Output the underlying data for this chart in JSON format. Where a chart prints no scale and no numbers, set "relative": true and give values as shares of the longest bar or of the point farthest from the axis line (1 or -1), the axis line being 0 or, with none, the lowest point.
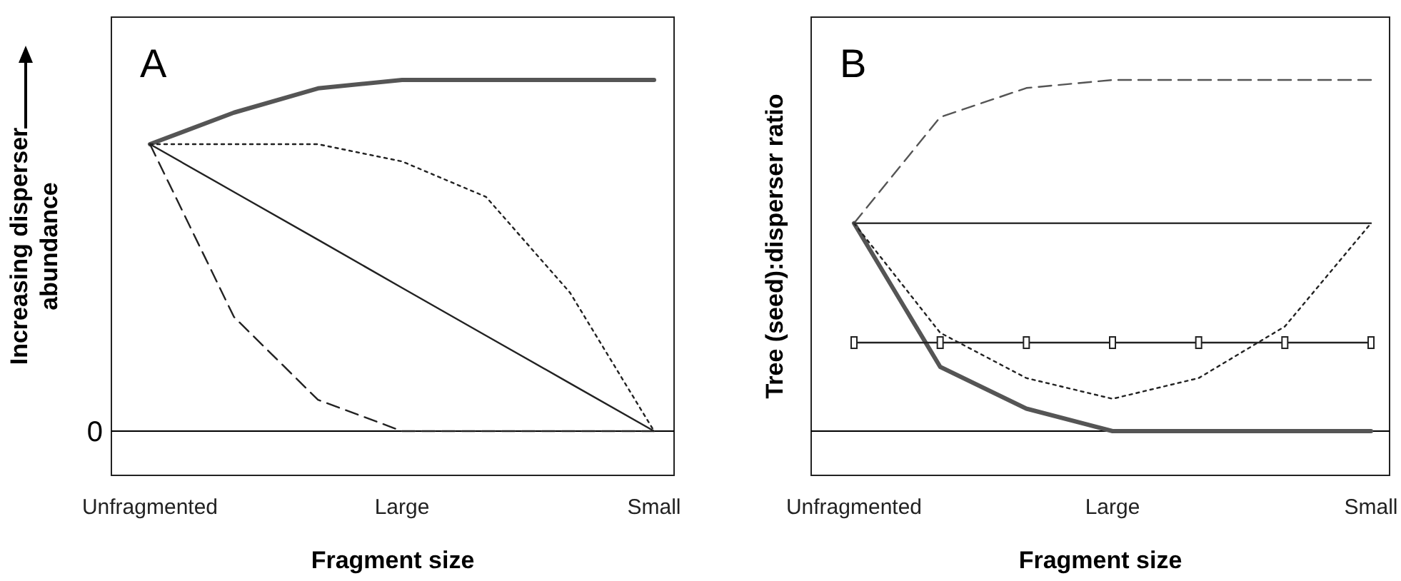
{
  "chart_data": [
    {
      "type": "line",
      "title": "A",
      "xlabel": "Fragment size",
      "ylabel": "Increasing disperser abundance",
      "relative": true,
      "annotations": [
        "0"
      ],
      "categories": [
        "Unfragmented",
        null,
        null,
        "Large",
        null,
        null,
        "Small"
      ],
      "series": [
        {
          "color": "#555555",
          "line_style": "solid",
          "values": [
            0.817,
            0.907,
            0.976,
            1,
            1,
            1,
            1
          ]
        },
        {
          "color": "#222222",
          "line_style": "dotted",
          "values": [
            0.817,
            0.817,
            0.817,
            0.768,
            0.667,
            0.394,
            0
          ]
        },
        {
          "color": "#222222",
          "line_style": "dashed",
          "values": [
            0.817,
            0.325,
            0.089,
            0,
            0,
            0,
            0
          ]
        },
        {
          "color": "#222222",
          "line_style": "solid",
          "values": [
            0.817,
            0.681,
            0.545,
            0.408,
            0.272,
            0.136,
            0
          ]
        }
      ]
    },
    {
      "type": "line",
      "title": "B",
      "xlabel": "Fragment size",
      "ylabel": "Tree (seed):disperser ratio",
      "relative": true,
      "categories": [
        "Unfragmented",
        null,
        null,
        "Large",
        null,
        null,
        "Small"
      ],
      "series": [
        {
          "color": "#555555",
          "line_style": "solid",
          "values": [
            0.592,
            0.183,
            0.064,
            0,
            0,
            0,
            0
          ]
        },
        {
          "color": "#555555",
          "line_style": "dashed",
          "values": [
            0.592,
            0.894,
            0.977,
            1,
            1,
            1,
            1
          ]
        },
        {
          "color": "#222222",
          "line_style": "dotted",
          "values": [
            0.592,
            0.28,
            0.151,
            0.092,
            0.151,
            0.298,
            0.592
          ]
        },
        {
          "color": "#333333",
          "line_style": "solid",
          "values": [
            0.592,
            0.592,
            0.592,
            0.592,
            0.592,
            0.592,
            0.592
          ]
        },
        {
          "color": "#222222",
          "line_style": "solid",
          "marker": "square",
          "values": [
            0.252,
            0.252,
            0.252,
            0.252,
            0.252,
            0.252,
            0.252
          ]
        }
      ]
    }
  ]
}
